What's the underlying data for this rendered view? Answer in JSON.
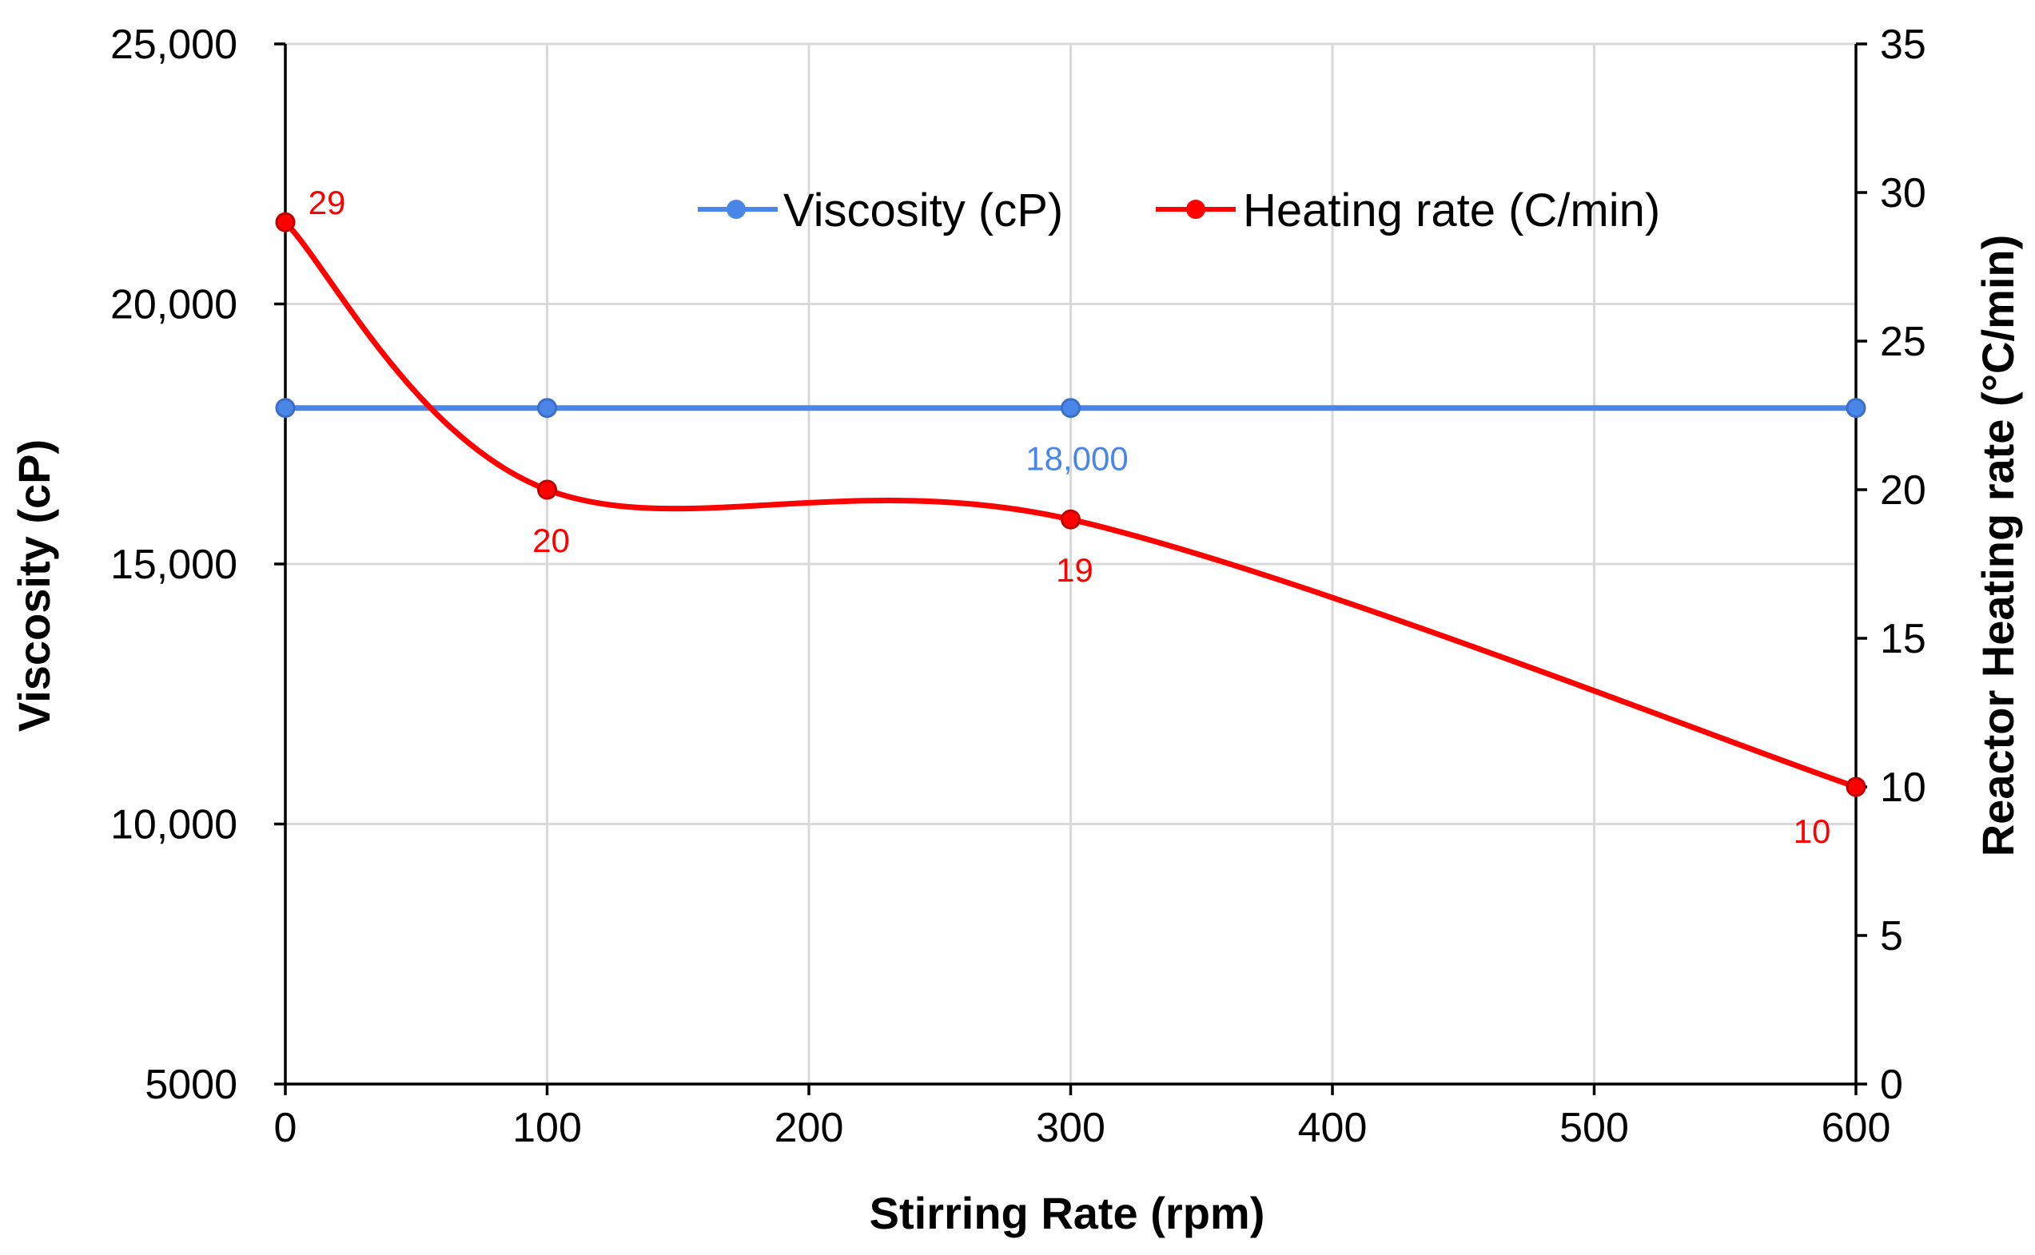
{
  "chart_data": {
    "type": "line",
    "title": "",
    "xlabel": "Stirring Rate (rpm)",
    "ylabel": "Viscosity (cP)",
    "y2label": "Reactor Heating rate (°C/min)",
    "xlim": [
      0,
      600
    ],
    "ylim": [
      5000,
      25000
    ],
    "y2lim": [
      0,
      35
    ],
    "x_ticks": [
      0,
      100,
      200,
      300,
      400,
      500,
      600
    ],
    "x_tick_labels": [
      "0",
      "100",
      "200",
      "300",
      "400",
      "500",
      "600"
    ],
    "y_ticks": [
      5000,
      10000,
      15000,
      20000,
      25000
    ],
    "y_tick_labels": [
      "5000",
      "10,000",
      "15,000",
      "20,000",
      "25,000"
    ],
    "y2_ticks": [
      0,
      5,
      10,
      15,
      20,
      25,
      30,
      35
    ],
    "y2_tick_labels": [
      "0",
      "5",
      "10",
      "15",
      "20",
      "25",
      "30",
      "35"
    ],
    "grid": true,
    "legend_position": "top-center",
    "series": [
      {
        "name": "Viscosity (cP)",
        "axis": "left",
        "color": "#4A86E8",
        "x": [
          0,
          100,
          300,
          600
        ],
        "values": [
          18000,
          18000,
          18000,
          18000
        ],
        "data_labels": [
          null,
          null,
          "18,000",
          null
        ]
      },
      {
        "name": "Heating rate (C/min)",
        "axis": "right",
        "color": "#FF0000",
        "x": [
          0,
          100,
          300,
          600
        ],
        "values": [
          29,
          20,
          19,
          10
        ],
        "data_labels": [
          "29",
          "20",
          "19",
          "10"
        ]
      }
    ]
  }
}
